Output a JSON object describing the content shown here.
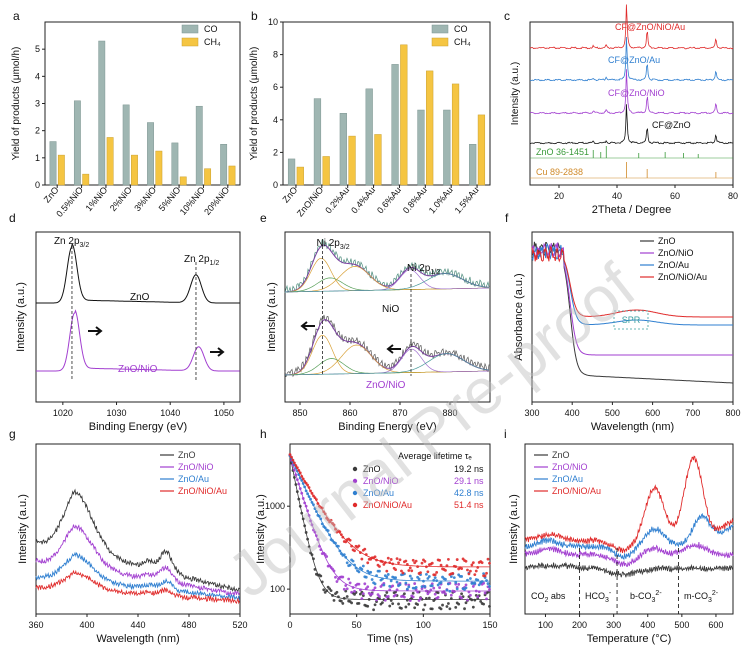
{
  "watermark": "Journal Pre-proof",
  "colors": {
    "co": "#9fb6b2",
    "ch4": "#f5c542",
    "zno": "#3a3a3a",
    "niO": "#a23fd0",
    "au": "#2f7fd0",
    "nioau": "#e02b2b",
    "black": "#111111",
    "green": "#3a9a3a",
    "orange": "#d08a2a",
    "fitOrange": "#d9a23a",
    "fitGreen": "#5aa05a",
    "fitPurple": "#a070d0",
    "fitTeal": "#4a9a9a",
    "spr": "#3aa0a0"
  },
  "chart_data": [
    {
      "panel": "a",
      "type": "bar",
      "ylabel": "Yield of products (μmol/h)",
      "ylim": [
        0,
        6
      ],
      "yticks": [
        "0",
        "1",
        "2",
        "3",
        "4",
        "5"
      ],
      "categories": [
        "ZnO",
        "0.5%NiO",
        "1%NiO",
        "2%NiO",
        "3%NiO",
        "5%NiO",
        "10%NiO",
        "20%NiO"
      ],
      "series": [
        {
          "name": "CO",
          "values": [
            1.6,
            3.1,
            5.3,
            2.95,
            2.3,
            1.55,
            2.9,
            1.5
          ]
        },
        {
          "name": "CH₄",
          "values": [
            1.1,
            0.4,
            1.75,
            1.1,
            1.25,
            0.3,
            0.6,
            0.7
          ]
        }
      ],
      "legend": [
        "CO",
        "CH₄"
      ]
    },
    {
      "panel": "b",
      "type": "bar",
      "ylabel": "Yield of products (μmol/h)",
      "ylim": [
        0,
        10
      ],
      "yticks": [
        "0",
        "2",
        "4",
        "6",
        "8",
        "10"
      ],
      "categories": [
        "ZnO",
        "ZnO/NiO",
        "0.2%Au",
        "0.4%Au",
        "0.6%Au",
        "0.8%Au",
        "1.0%Au",
        "1.5%Au"
      ],
      "series": [
        {
          "name": "CO",
          "values": [
            1.6,
            5.3,
            4.4,
            5.9,
            7.4,
            4.6,
            4.6,
            2.5
          ]
        },
        {
          "name": "CH₄",
          "values": [
            1.1,
            1.75,
            3.0,
            3.1,
            8.6,
            7.0,
            6.2,
            4.3
          ]
        }
      ],
      "legend": [
        "CO",
        "CH₄"
      ]
    },
    {
      "panel": "c",
      "type": "line",
      "xlabel": "2Theta / Degree",
      "ylabel": "Intensity (a.u.)",
      "xlim": [
        10,
        80
      ],
      "xticks": [
        "20",
        "40",
        "60",
        "80"
      ],
      "traces": [
        "CF@ZnO/NiO/Au",
        "CF@ZnO/Au",
        "CF@ZnO/NiO",
        "CF@ZnO"
      ],
      "refs": [
        "ZnO 36-1451",
        "Cu 89-2838"
      ]
    },
    {
      "panel": "d",
      "type": "line",
      "xlabel": "Binding Energy (eV)",
      "ylabel": "Intensity (a.u.)",
      "xlim": [
        1015,
        1053
      ],
      "xticks": [
        "1020",
        "1030",
        "1040",
        "1050"
      ],
      "traces": [
        "ZnO",
        "ZnO/NiO"
      ],
      "peaks": [
        "Zn 2p₃₂",
        "Zn 2p₁₂"
      ],
      "peak_labels": [
        {
          "main": "Zn 2p",
          "sub": "3/2"
        },
        {
          "main": "Zn 2p",
          "sub": "1/2"
        }
      ]
    },
    {
      "panel": "e",
      "type": "line",
      "xlabel": "Binding Energy (eV)",
      "ylabel": "Intensity (a.u.)",
      "xlim": [
        847,
        888
      ],
      "xticks": [
        "850",
        "860",
        "870",
        "880"
      ],
      "traces": [
        "NiO",
        "ZnO/NiO"
      ],
      "peak_labels": [
        {
          "main": "Ni 2p",
          "sub": "3/2"
        },
        {
          "main": "Ni 2p",
          "sub": "1/2"
        }
      ]
    },
    {
      "panel": "f",
      "type": "line",
      "xlabel": "Wavelength (nm)",
      "ylabel": "Absorbance (a.u.)",
      "xlim": [
        300,
        800
      ],
      "xticks": [
        "300",
        "400",
        "500",
        "600",
        "700",
        "800"
      ],
      "legend": [
        "ZnO",
        "ZnO/NiO",
        "ZnO/Au",
        "ZnO/NiO/Au"
      ],
      "annotation": "SPR"
    },
    {
      "panel": "g",
      "type": "line",
      "xlabel": "Wavelength (nm)",
      "ylabel": "Intensity (a.u.)",
      "xlim": [
        360,
        520
      ],
      "xticks": [
        "360",
        "400",
        "440",
        "480",
        "520"
      ],
      "legend": [
        "ZnO",
        "ZnO/NiO",
        "ZnO/Au",
        "ZnO/NiO/Au"
      ]
    },
    {
      "panel": "h",
      "type": "scatter",
      "xlabel": "Time (ns)",
      "ylabel": "Intensity (a.u.)",
      "xlim": [
        0,
        150
      ],
      "xticks": [
        "0",
        "50",
        "100",
        "150"
      ],
      "yticks": [
        "100",
        "1000"
      ],
      "legend_title": "Average lifetime τₑ",
      "legend": [
        "ZnO",
        "ZnO/NiO",
        "ZnO/Au",
        "ZnO/NiO/Au"
      ],
      "lifetimes": [
        "19.2 ns",
        "29.1 ns",
        "42.8 ns",
        "51.4 ns"
      ],
      "tau_ns": [
        19.2,
        29.1,
        42.8,
        51.4
      ]
    },
    {
      "panel": "i",
      "type": "line",
      "xlabel": "Temperature (°C)",
      "ylabel": "Intensity (a.u.)",
      "xlim": [
        40,
        650
      ],
      "xticks": [
        "100",
        "200",
        "300",
        "400",
        "500",
        "600"
      ],
      "legend": [
        "ZnO",
        "ZnO/NiO",
        "ZnO/Au",
        "ZnO/NiO/Au"
      ],
      "regions": [
        {
          "main": "CO",
          "sub": "2",
          "rest": " abs"
        },
        {
          "main": "HCO",
          "sub": "3",
          "sup": "-"
        },
        {
          "main": "b-CO",
          "sub": "3",
          "sup": "2-"
        },
        {
          "main": "m-CO",
          "sub": "3",
          "sup": "2-"
        }
      ]
    }
  ]
}
